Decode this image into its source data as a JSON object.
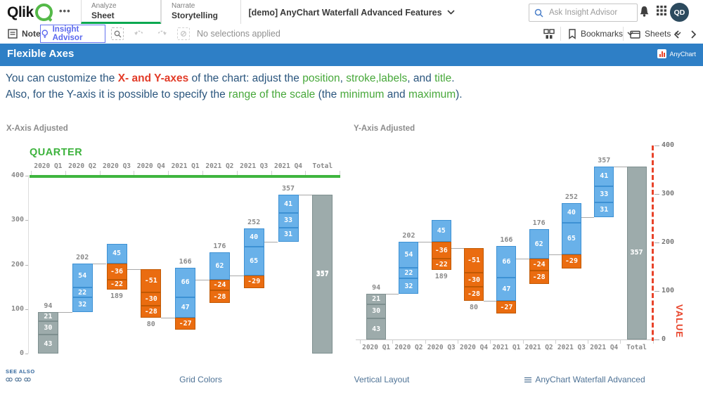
{
  "topbar": {
    "logo_text": "Qlik",
    "tabs": [
      {
        "small": "Analyze",
        "label": "Sheet",
        "active": true
      },
      {
        "small": "Narrate",
        "label": "Storytelling",
        "active": false
      }
    ],
    "app_title": "[demo] AnyChart Waterfall Advanced Features",
    "search_placeholder": "Ask Insight Advisor",
    "avatar_initials": "QD"
  },
  "toolbar": {
    "notes_label": "Notes",
    "insight_advisor_label": "Insight Advisor",
    "no_selections_label": "No selections applied",
    "bookmarks_label": "Bookmarks",
    "sheets_label": "Sheets"
  },
  "sheet_header": {
    "title": "Flexible Axes",
    "badge_label": "AnyChart",
    "bg_color": "#2e7fc6"
  },
  "description": {
    "line1": [
      {
        "t": "You can customize the ",
        "c": "base"
      },
      {
        "t": "X- and Y-axes",
        "c": "red"
      },
      {
        "t": " of the chart: adjust the ",
        "c": "base"
      },
      {
        "t": "position",
        "c": "green"
      },
      {
        "t": ", ",
        "c": "base"
      },
      {
        "t": "stroke,labels",
        "c": "green"
      },
      {
        "t": ", and ",
        "c": "base"
      },
      {
        "t": "title",
        "c": "green"
      },
      {
        "t": ".",
        "c": "base"
      }
    ],
    "line2": [
      {
        "t": "Also, for the Y-axis it is possible to specify the ",
        "c": "base"
      },
      {
        "t": "range of the scale",
        "c": "green"
      },
      {
        "t": " (the ",
        "c": "base"
      },
      {
        "t": "minimum",
        "c": "green"
      },
      {
        "t": " and ",
        "c": "base"
      },
      {
        "t": "maximum",
        "c": "green"
      },
      {
        "t": ").",
        "c": "base"
      }
    ]
  },
  "chart_data": [
    {
      "type": "waterfall",
      "title": "X-Axis Adjusted",
      "x_axis": {
        "position": "top",
        "title": "QUARTER",
        "line_color": "#3eb53e",
        "labels": [
          "2020 Q1",
          "2020 Q2",
          "2020 Q3",
          "2020 Q4",
          "2021 Q1",
          "2021 Q2",
          "2021 Q3",
          "2021 Q4",
          "Total"
        ]
      },
      "y_axis": {
        "position": "left",
        "min": 0,
        "max": 400,
        "ticks": [
          400,
          300,
          200,
          100,
          0
        ]
      },
      "bars": [
        {
          "category": "2020 Q1",
          "role": "start",
          "segments": [
            21,
            30,
            43
          ],
          "total": 94,
          "label": "94",
          "label_pos": "above"
        },
        {
          "category": "2020 Q2",
          "role": "delta",
          "segments": [
            54,
            22,
            32
          ],
          "total": 202,
          "label": "202",
          "label_pos": "above"
        },
        {
          "category": "2020 Q3",
          "role": "delta",
          "segments": [
            45,
            -36,
            -22
          ],
          "total": 189,
          "label": "189",
          "label_pos": "below"
        },
        {
          "category": "2020 Q4",
          "role": "delta",
          "segments": [
            -51,
            -30,
            -28
          ],
          "total": 80,
          "label": "80",
          "label_pos": "below"
        },
        {
          "category": "2021 Q1",
          "role": "delta",
          "segments": [
            66,
            47,
            -27
          ],
          "total": 166,
          "label": "166",
          "label_pos": "above"
        },
        {
          "category": "2021 Q2",
          "role": "delta",
          "segments": [
            62,
            -24,
            -28
          ],
          "total": 176,
          "label": "176",
          "label_pos": "above"
        },
        {
          "category": "2021 Q3",
          "role": "delta",
          "segments": [
            40,
            65,
            -29
          ],
          "total": 252,
          "label": "252",
          "label_pos": "above"
        },
        {
          "category": "2021 Q4",
          "role": "delta",
          "segments": [
            41,
            33,
            31
          ],
          "total": 357,
          "label": "357",
          "label_pos": "above"
        },
        {
          "category": "Total",
          "role": "total",
          "segments": [
            357
          ],
          "total": 357,
          "label": "357",
          "label_pos": "inside"
        }
      ],
      "colors": {
        "positive": "#69b1e9",
        "positive_border": "#3d91d4",
        "negative": "#ea6c10",
        "negative_border": "#c05903",
        "total": "#9dabab",
        "total_border": "#7e8f8f",
        "connector": "#a8a8a8",
        "label": "#8a8a8a"
      }
    },
    {
      "type": "waterfall",
      "title": "Y-Axis Adjusted",
      "x_axis": {
        "position": "bottom",
        "title": "",
        "line_color": "#c9c9c9",
        "labels": [
          "2020 Q1",
          "2020 Q2",
          "2020 Q3",
          "2020 Q4",
          "2021 Q1",
          "2021 Q2",
          "2021 Q3",
          "2021 Q4",
          "Total"
        ]
      },
      "y_axis": {
        "position": "right",
        "min": 0,
        "max": 400,
        "ticks": [
          400,
          300,
          200,
          100,
          0
        ],
        "title": "VALUE",
        "axis_color": "#e8432a",
        "dashed": true
      },
      "bars": [
        {
          "category": "2020 Q1",
          "role": "start",
          "segments": [
            21,
            30,
            43
          ],
          "total": 94,
          "label": "94",
          "label_pos": "above"
        },
        {
          "category": "2020 Q2",
          "role": "delta",
          "segments": [
            54,
            22,
            32
          ],
          "total": 202,
          "label": "202",
          "label_pos": "above"
        },
        {
          "category": "2020 Q3",
          "role": "delta",
          "segments": [
            45,
            -36,
            -22
          ],
          "total": 189,
          "label": "189",
          "label_pos": "below"
        },
        {
          "category": "2020 Q4",
          "role": "delta",
          "segments": [
            -51,
            -30,
            -28
          ],
          "total": 80,
          "label": "80",
          "label_pos": "below"
        },
        {
          "category": "2021 Q1",
          "role": "delta",
          "segments": [
            66,
            47,
            -27
          ],
          "total": 166,
          "label": "166",
          "label_pos": "above"
        },
        {
          "category": "2021 Q2",
          "role": "delta",
          "segments": [
            62,
            -24,
            -28
          ],
          "total": 176,
          "label": "176",
          "label_pos": "above"
        },
        {
          "category": "2021 Q3",
          "role": "delta",
          "segments": [
            40,
            65,
            -29
          ],
          "total": 252,
          "label": "252",
          "label_pos": "above"
        },
        {
          "category": "2021 Q4",
          "role": "delta",
          "segments": [
            41,
            33,
            31
          ],
          "total": 357,
          "label": "357",
          "label_pos": "above"
        },
        {
          "category": "Total",
          "role": "total",
          "segments": [
            357
          ],
          "total": 357,
          "label": "357",
          "label_pos": "inside"
        }
      ],
      "colors": {
        "positive": "#69b1e9",
        "positive_border": "#3d91d4",
        "negative": "#ea6c10",
        "negative_border": "#c05903",
        "total": "#9dabab",
        "total_border": "#7e8f8f",
        "connector": "#a8a8a8",
        "label": "#8a8a8a"
      }
    }
  ],
  "footer": {
    "see_also": "SEE ALSO",
    "links": [
      {
        "label": "Grid Colors"
      },
      {
        "label": "Vertical Layout"
      },
      {
        "label": "AnyChart Waterfall Advanced"
      }
    ]
  }
}
